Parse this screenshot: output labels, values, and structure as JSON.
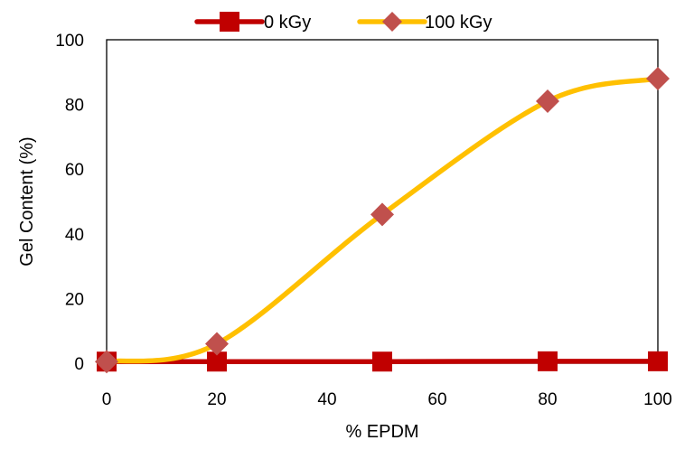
{
  "chart_data": {
    "type": "line",
    "title": "",
    "xlabel": "% EPDM",
    "ylabel": "Gel Content (%)",
    "xlim": [
      0,
      100
    ],
    "ylim": [
      0,
      100
    ],
    "x_ticks": [
      0,
      20,
      40,
      60,
      80,
      100
    ],
    "y_ticks": [
      0,
      20,
      40,
      60,
      80,
      100
    ],
    "grid": false,
    "legend_position": "top",
    "series": [
      {
        "name": "0 kGy",
        "x": [
          0,
          20,
          50,
          80,
          100
        ],
        "values": [
          0.5,
          0.5,
          0.5,
          0.6,
          0.6
        ],
        "line_color": "#C00000",
        "marker": "square",
        "marker_color": "#C00000",
        "smooth": false
      },
      {
        "name": "100 kGy",
        "x": [
          0,
          20,
          50,
          80,
          100
        ],
        "values": [
          0.5,
          6,
          46,
          81,
          88
        ],
        "line_color": "#FFC000",
        "marker": "diamond",
        "marker_color": "#C0504D",
        "smooth": true
      }
    ]
  }
}
